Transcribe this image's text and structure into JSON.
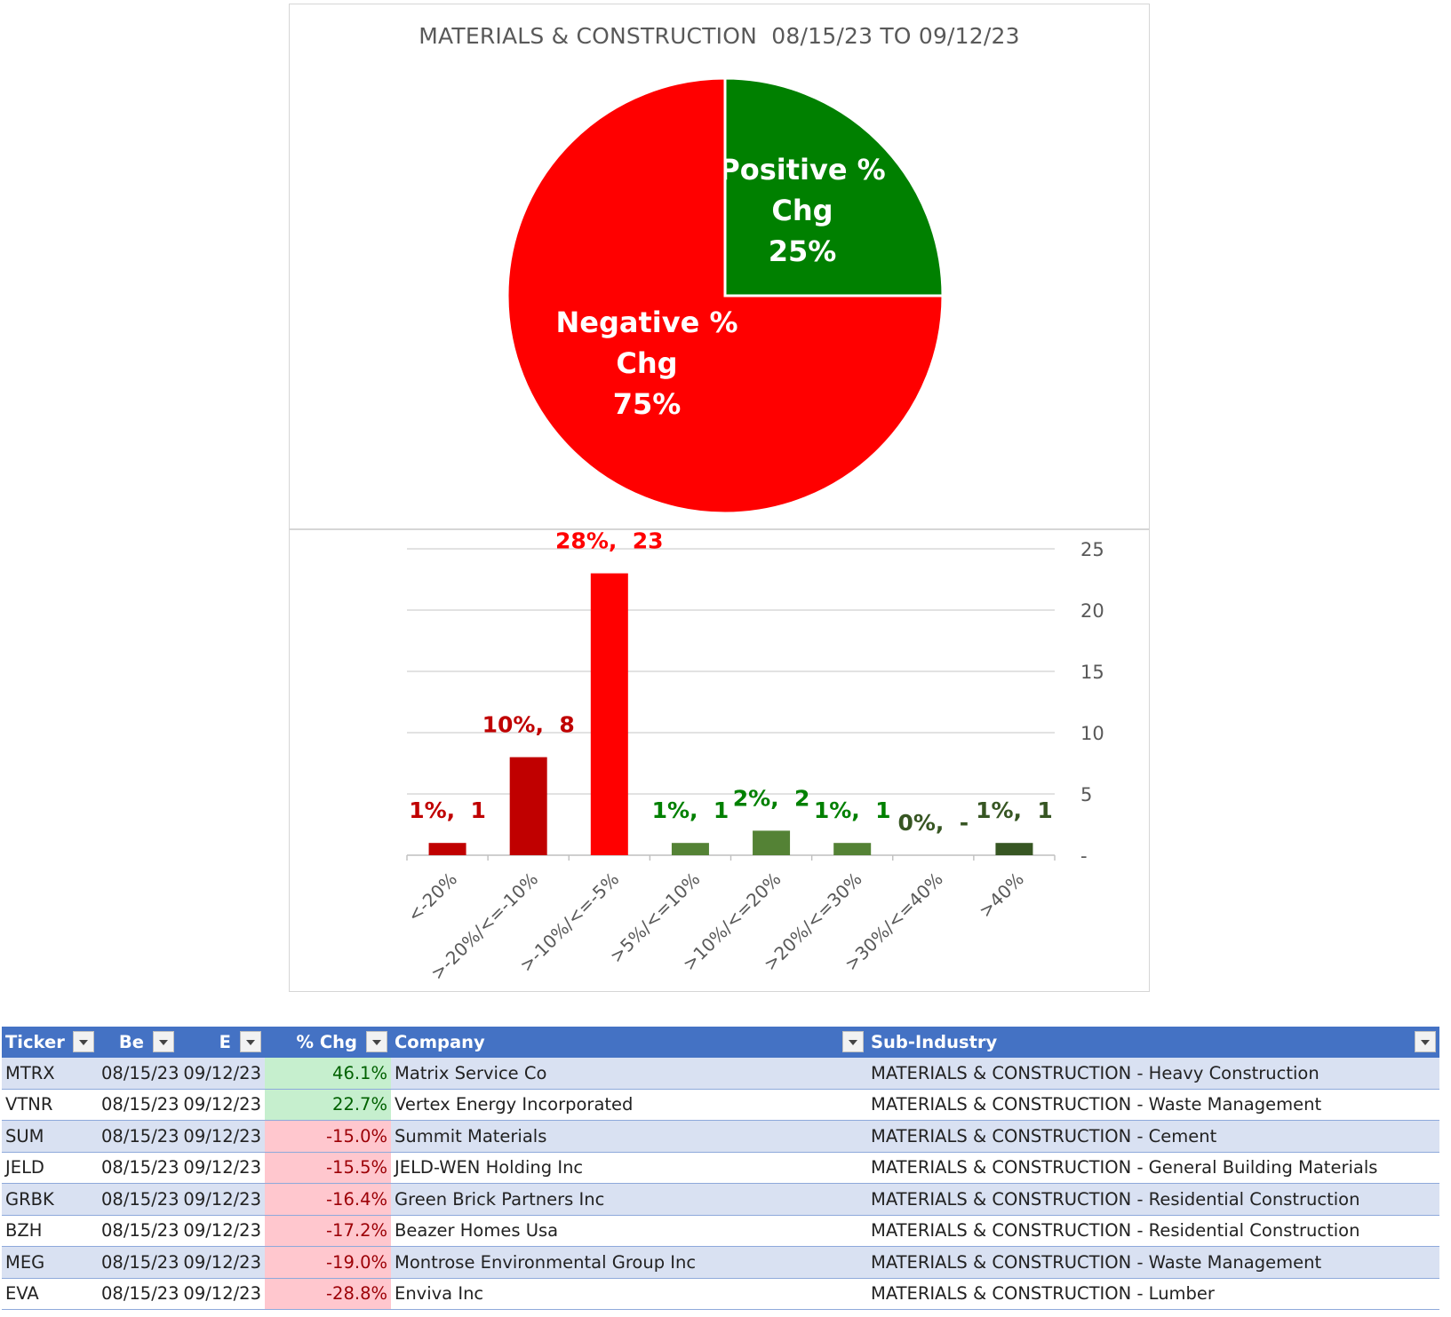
{
  "chart_title": "MATERIALS & CONSTRUCTION  08/15/23 TO 09/12/23",
  "chart_data": [
    {
      "type": "pie",
      "slices": [
        {
          "label_line1": "Positive %",
          "label_line2": "Chg",
          "percent_label": "25%",
          "value": 25,
          "color": "#008000"
        },
        {
          "label_line1": "Negative %",
          "label_line2": "Chg",
          "percent_label": "75%",
          "value": 75,
          "color": "#ff0000"
        }
      ]
    },
    {
      "type": "bar",
      "categories": [
        "<-20%",
        ">-20%/<=-10%",
        ">-10%/<=-5%",
        ">5%/<=10%",
        ">10%/<=20%",
        ">20%/<=30%",
        ">30%/<=40%",
        ">40%"
      ],
      "values": [
        1,
        8,
        23,
        1,
        2,
        1,
        0,
        1
      ],
      "data_labels": [
        "1%,  1",
        "10%,  8",
        "28%,  23",
        "1%,  1",
        "2%,  2",
        "1%,  1",
        "0%,  -",
        "1%,  1"
      ],
      "colors": [
        "#c00000",
        "#c00000",
        "#ff0000",
        "#548235",
        "#548235",
        "#548235",
        "#548235",
        "#375623"
      ],
      "label_colors": [
        "#c00000",
        "#c00000",
        "#ff0000",
        "#008000",
        "#008000",
        "#008000",
        "#375623",
        "#375623"
      ],
      "ylim": [
        0,
        25
      ],
      "yticks": [
        0,
        5,
        10,
        15,
        20,
        25
      ],
      "ytick_labels": [
        "-",
        "5",
        "10",
        "15",
        "20",
        "25"
      ],
      "y_axis_side": "right",
      "grid": true
    }
  ],
  "table": {
    "headers": [
      "Ticker",
      "Be",
      "E",
      "% Chg",
      "Company",
      "Sub-Industry"
    ],
    "rows": [
      {
        "ticker": "MTRX",
        "begin": "08/15/23",
        "end": "09/12/23",
        "chg": "46.1%",
        "company": "Matrix Service Co",
        "sub_industry": "MATERIALS & CONSTRUCTION - Heavy Construction",
        "sign": "pos"
      },
      {
        "ticker": "VTNR",
        "begin": "08/15/23",
        "end": "09/12/23",
        "chg": "22.7%",
        "company": "Vertex Energy Incorporated",
        "sub_industry": "MATERIALS & CONSTRUCTION - Waste Management",
        "sign": "pos"
      },
      {
        "ticker": "SUM",
        "begin": "08/15/23",
        "end": "09/12/23",
        "chg": "-15.0%",
        "company": "Summit Materials",
        "sub_industry": "MATERIALS & CONSTRUCTION - Cement",
        "sign": "neg"
      },
      {
        "ticker": "JELD",
        "begin": "08/15/23",
        "end": "09/12/23",
        "chg": "-15.5%",
        "company": "JELD-WEN Holding Inc",
        "sub_industry": "MATERIALS & CONSTRUCTION - General Building Materials",
        "sign": "neg"
      },
      {
        "ticker": "GRBK",
        "begin": "08/15/23",
        "end": "09/12/23",
        "chg": "-16.4%",
        "company": "Green Brick Partners Inc",
        "sub_industry": "MATERIALS & CONSTRUCTION - Residential Construction",
        "sign": "neg"
      },
      {
        "ticker": "BZH",
        "begin": "08/15/23",
        "end": "09/12/23",
        "chg": "-17.2%",
        "company": "Beazer Homes Usa",
        "sub_industry": "MATERIALS & CONSTRUCTION - Residential Construction",
        "sign": "neg"
      },
      {
        "ticker": "MEG",
        "begin": "08/15/23",
        "end": "09/12/23",
        "chg": "-19.0%",
        "company": "Montrose Environmental Group Inc",
        "sub_industry": "MATERIALS & CONSTRUCTION - Waste Management",
        "sign": "neg"
      },
      {
        "ticker": "EVA",
        "begin": "08/15/23",
        "end": "09/12/23",
        "chg": "-28.8%",
        "company": "Enviva Inc",
        "sub_industry": "MATERIALS & CONSTRUCTION - Lumber",
        "sign": "neg"
      }
    ]
  }
}
